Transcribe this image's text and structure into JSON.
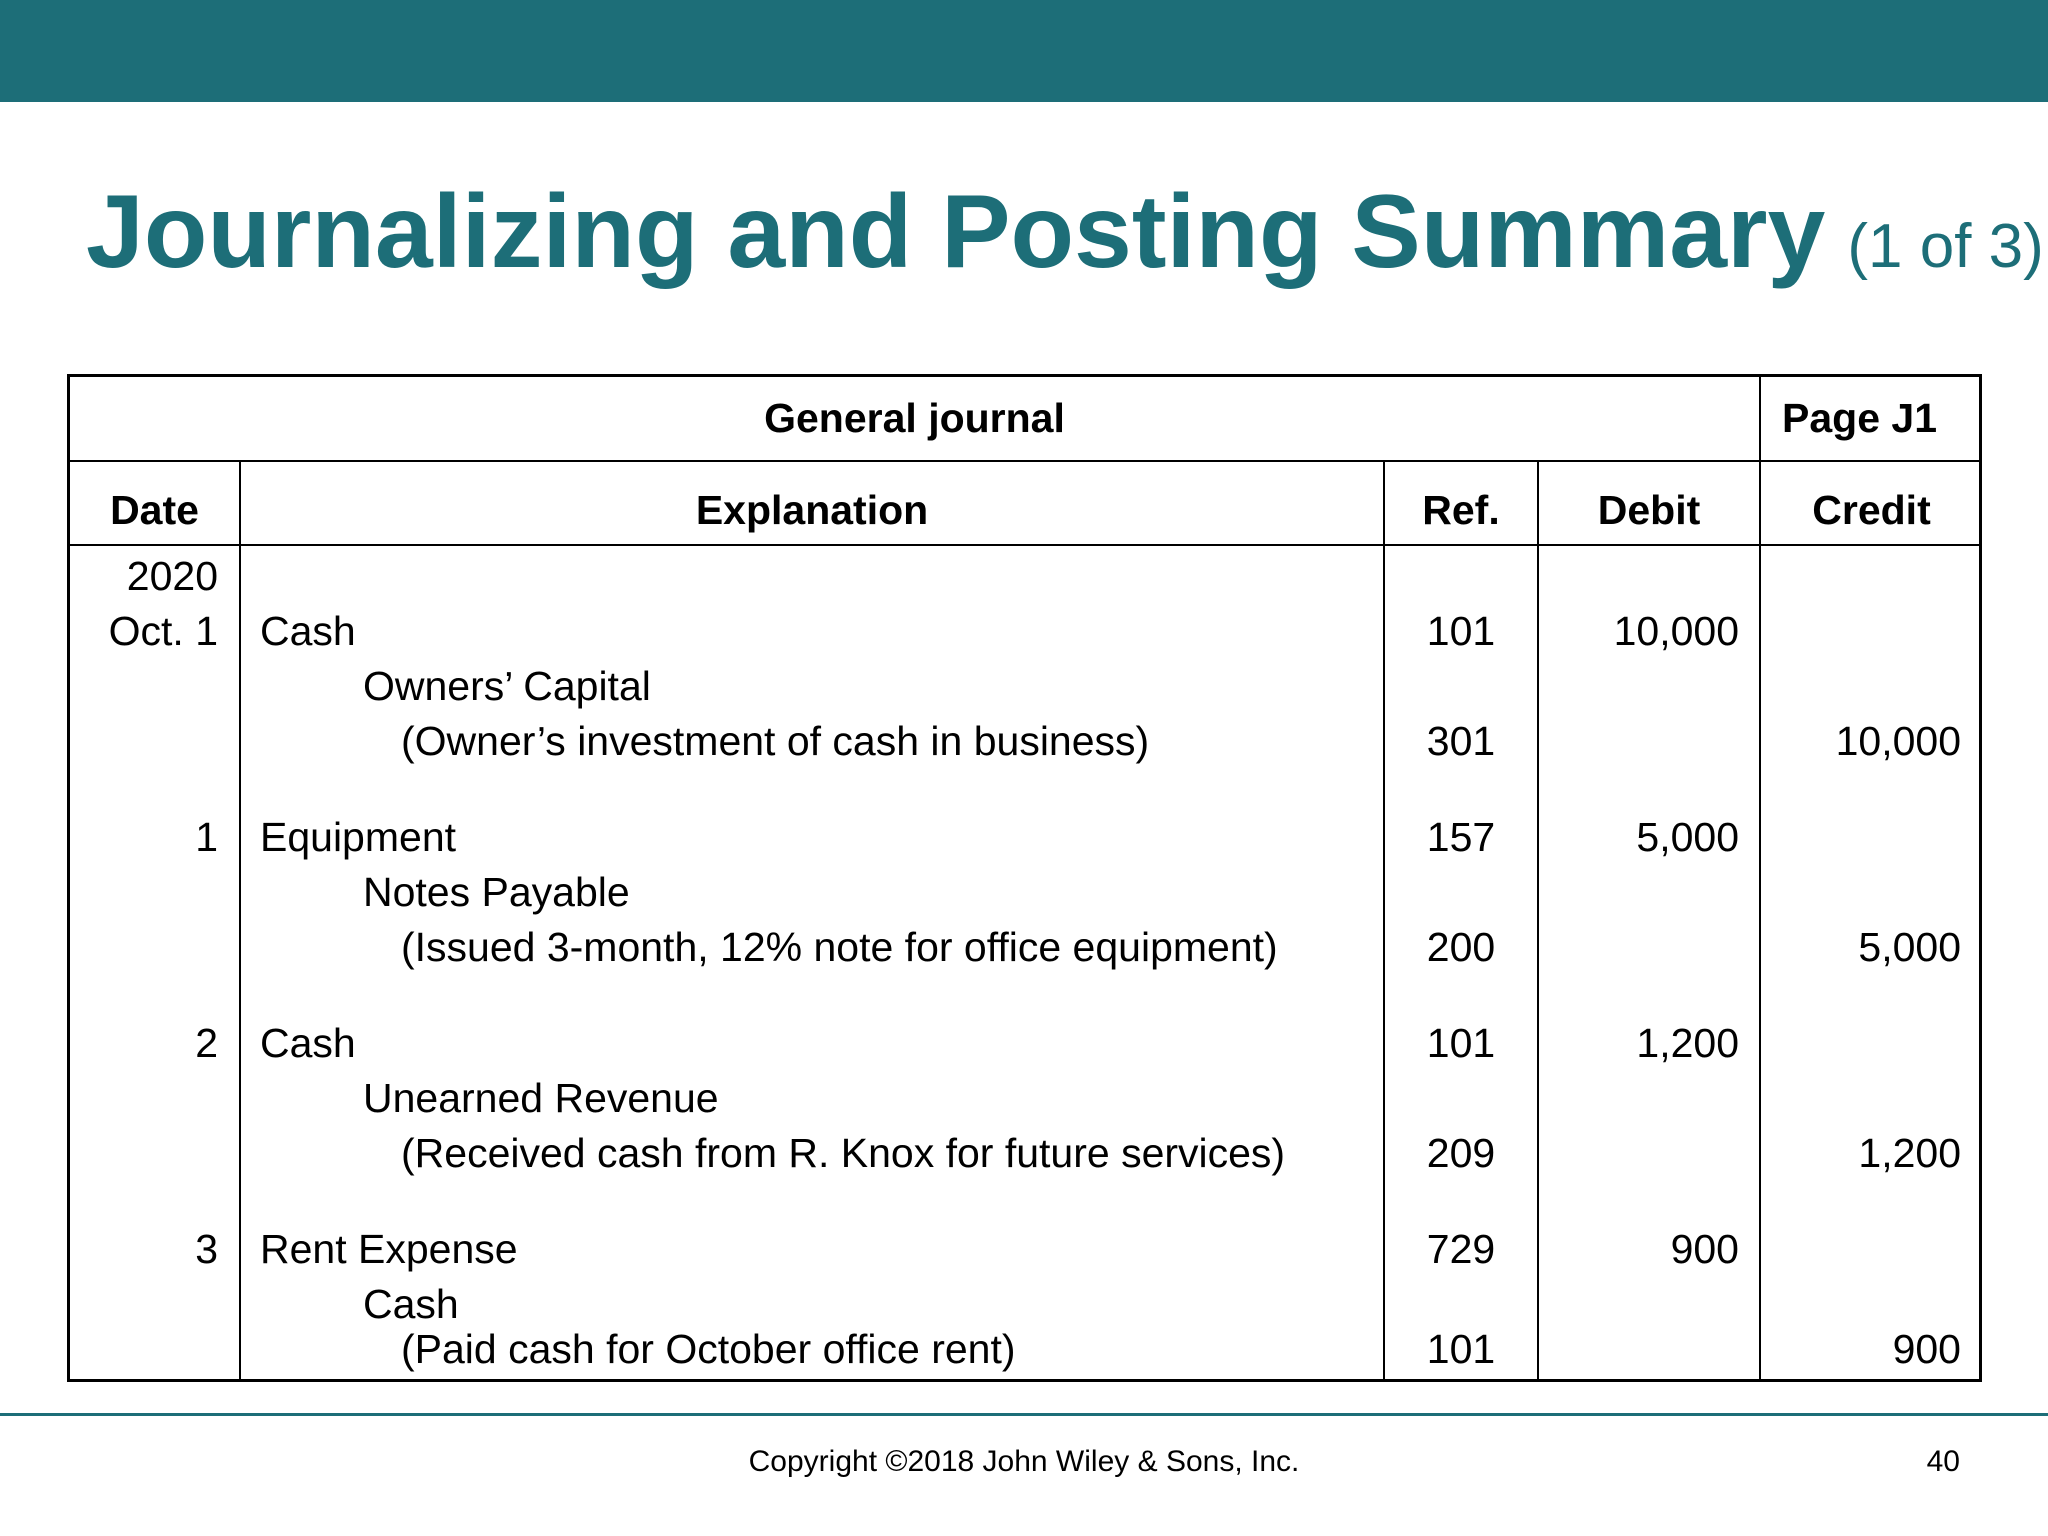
{
  "slide": {
    "title": "Journalizing and Posting Summary",
    "title_suffix": "(1 of 3)",
    "copyright": "Copyright ©2018 John Wiley & Sons, Inc.",
    "page_number": "40"
  },
  "journal": {
    "name": "General journal",
    "page": "Page J1",
    "headers": {
      "date": "Date",
      "explanation": "Explanation",
      "ref": "Ref.",
      "debit": "Debit",
      "credit": "Credit"
    },
    "year": "2020",
    "entries": [
      {
        "date": "Oct. 1",
        "debit_account": "Cash",
        "debit_ref": "101",
        "debit_amount": "10,000",
        "credit_account": "Owners’ Capital",
        "memo": "(Owner’s investment of cash in business)",
        "credit_ref": "301",
        "credit_amount": "10,000"
      },
      {
        "date": "1",
        "debit_account": "Equipment",
        "debit_ref": "157",
        "debit_amount": "5,000",
        "credit_account": "Notes Payable",
        "memo": "(Issued 3-month, 12% note for office equipment)",
        "credit_ref": "200",
        "credit_amount": "5,000"
      },
      {
        "date": "2",
        "debit_account": "Cash",
        "debit_ref": "101",
        "debit_amount": "1,200",
        "credit_account": "Unearned Revenue",
        "memo": "(Received cash from R. Knox for future services)",
        "credit_ref": "209",
        "credit_amount": "1,200"
      },
      {
        "date": "3",
        "debit_account": "Rent Expense",
        "debit_ref": "729",
        "debit_amount": "900",
        "credit_account": "Cash",
        "memo": "(Paid cash for October office rent)",
        "credit_ref": "101",
        "credit_amount": "900"
      }
    ]
  }
}
